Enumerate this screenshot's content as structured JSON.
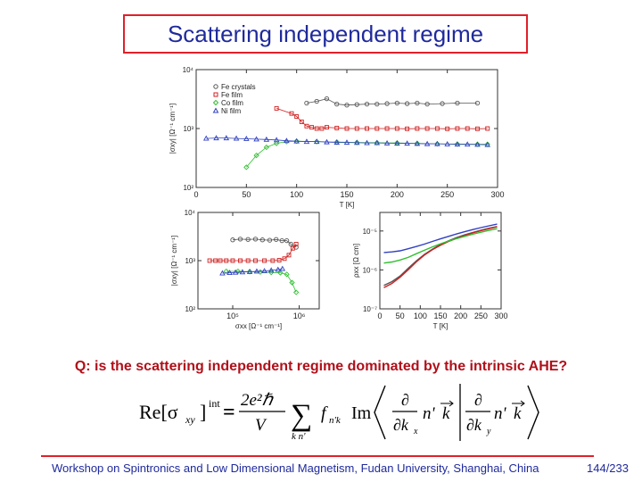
{
  "slide": {
    "title": "Scattering independent regime",
    "question": "Q: is the scattering independent regime dominated by the intrinsic AHE?",
    "footer": "Workshop on Spintronics and Low Dimensional Magnetism, Fudan University, Shanghai, China",
    "page": "144/233"
  },
  "equation": {
    "lhs": "Re[σ",
    "lhs_sub": "xy",
    "lhs_close": "]",
    "lhs_sup": "int",
    "equals": "=",
    "frac_num": "2e²ℏ",
    "frac_den": "V",
    "sum_sub": "k n'",
    "f_term": "f",
    "f_sub": "n'k",
    "im": "Im",
    "d1_num": "∂",
    "d1_den": "∂k",
    "d1_den_sub": "x",
    "d2_num": "∂",
    "d2_den": "∂k",
    "d2_den_sub": "y",
    "ket1": "n'",
    "ket1_k": "k",
    "ket2": "n'",
    "ket2_k": "k"
  },
  "colors": {
    "accent": "#e0202a",
    "title_text": "#1f2a9c",
    "question_text": "#b0101a"
  },
  "chart_data": [
    {
      "type": "scatter",
      "panel": "top",
      "xlabel": "T [K]",
      "ylabel": "|σxy| [Ω⁻¹ cm⁻¹]",
      "x_ticks": [
        "0",
        "50",
        "100",
        "150",
        "200",
        "250",
        "300"
      ],
      "y_ticks": [
        "10²",
        "10³",
        "10⁴"
      ],
      "xlim": [
        0,
        300
      ],
      "ylim": [
        100,
        10000
      ],
      "y_scale": "log",
      "legend_position": "top-left",
      "series": [
        {
          "name": "Fe crystals",
          "color": "#555555",
          "x": [
            110,
            120,
            130,
            140,
            150,
            160,
            170,
            180,
            190,
            200,
            210,
            220,
            230,
            245,
            260,
            280
          ],
          "y": [
            2700,
            2900,
            3200,
            2600,
            2500,
            2550,
            2600,
            2600,
            2650,
            2700,
            2650,
            2700,
            2600,
            2650,
            2700,
            2700
          ]
        },
        {
          "name": "Fe film",
          "color": "#d02020",
          "x": [
            80,
            95,
            100,
            105,
            110,
            115,
            120,
            125,
            130,
            140,
            150,
            160,
            170,
            180,
            190,
            200,
            210,
            220,
            230,
            240,
            250,
            260,
            270,
            280,
            290
          ],
          "y": [
            2200,
            1800,
            1600,
            1300,
            1100,
            1050,
            1000,
            1000,
            1050,
            1020,
            1000,
            1000,
            1000,
            1000,
            1000,
            1000,
            990,
            1000,
            1000,
            1000,
            990,
            1000,
            1000,
            990,
            1000
          ]
        },
        {
          "name": "Co film",
          "color": "#30c030",
          "x": [
            50,
            60,
            70,
            80,
            90,
            100,
            120,
            140,
            160,
            180,
            200,
            220,
            240,
            260,
            280,
            290
          ],
          "y": [
            220,
            350,
            480,
            560,
            600,
            610,
            600,
            590,
            580,
            575,
            570,
            560,
            550,
            545,
            540,
            540
          ]
        },
        {
          "name": "Ni film",
          "color": "#3040c0",
          "x": [
            10,
            20,
            30,
            40,
            50,
            60,
            70,
            80,
            90,
            100,
            110,
            120,
            130,
            140,
            150,
            160,
            170,
            180,
            190,
            200,
            210,
            220,
            230,
            240,
            250,
            260,
            270,
            280,
            290
          ],
          "y": [
            680,
            690,
            690,
            680,
            670,
            660,
            650,
            640,
            620,
            610,
            600,
            600,
            590,
            580,
            580,
            575,
            570,
            570,
            565,
            560,
            560,
            555,
            550,
            550,
            545,
            540,
            540,
            535,
            530
          ]
        }
      ]
    },
    {
      "type": "scatter",
      "panel": "bottom-left",
      "xlabel": "σxx [Ω⁻¹ cm⁻¹]",
      "ylabel": "|σxy| [Ω⁻¹ cm⁻¹]",
      "x_ticks": [
        "10⁵",
        "10⁶"
      ],
      "y_ticks": [
        "10²",
        "10³",
        "10⁴"
      ],
      "xlim": [
        30000,
        2000000
      ],
      "ylim": [
        100,
        10000
      ],
      "x_scale": "log",
      "y_scale": "log",
      "series": [
        {
          "name": "Fe crystals",
          "color": "#555555",
          "x": [
            100000,
            130000,
            170000,
            220000,
            280000,
            360000,
            450000,
            550000,
            650000,
            750000,
            900000
          ],
          "y": [
            2700,
            2800,
            2750,
            2800,
            2700,
            2650,
            2750,
            2600,
            2600,
            2200,
            1900
          ]
        },
        {
          "name": "Fe film",
          "color": "#d02020",
          "x": [
            45000,
            55000,
            65000,
            80000,
            100000,
            130000,
            170000,
            220000,
            300000,
            400000,
            500000,
            600000,
            700000,
            800000,
            900000
          ],
          "y": [
            1000,
            1000,
            1000,
            1000,
            1000,
            1000,
            1000,
            1000,
            1000,
            1000,
            1020,
            1100,
            1300,
            1800,
            2200
          ]
        },
        {
          "name": "Co film",
          "color": "#30c030",
          "x": [
            80000,
            120000,
            180000,
            260000,
            380000,
            520000,
            650000,
            780000,
            900000
          ],
          "y": [
            600,
            600,
            590,
            580,
            570,
            560,
            520,
            350,
            220
          ]
        },
        {
          "name": "Ni film",
          "color": "#3040c0",
          "x": [
            70000,
            90000,
            110000,
            140000,
            180000,
            230000,
            300000,
            380000,
            480000,
            560000
          ],
          "y": [
            550,
            560,
            570,
            580,
            590,
            600,
            610,
            630,
            650,
            680
          ]
        }
      ]
    },
    {
      "type": "line",
      "panel": "bottom-right",
      "xlabel": "T [K]",
      "ylabel": "ρxx [Ω cm]",
      "x_ticks": [
        "0",
        "50",
        "100",
        "150",
        "200",
        "250",
        "300"
      ],
      "y_ticks": [
        "10⁻⁷",
        "10⁻⁶",
        "10⁻⁵"
      ],
      "xlim": [
        0,
        300
      ],
      "ylim": [
        1e-07,
        3e-05
      ],
      "y_scale": "log",
      "series": [
        {
          "name": "Fe crystals",
          "color": "#555555",
          "x": [
            10,
            30,
            50,
            70,
            90,
            110,
            130,
            150,
            170,
            190,
            210,
            230,
            250,
            270,
            290
          ],
          "y": [
            4e-07,
            5e-07,
            7e-07,
            1.1e-06,
            1.7e-06,
            2.5e-06,
            3.4e-06,
            4.5e-06,
            5.6e-06,
            6.8e-06,
            8e-06,
            9.2e-06,
            1.05e-05,
            1.18e-05,
            1.3e-05
          ]
        },
        {
          "name": "Fe film",
          "color": "#d02020",
          "x": [
            10,
            30,
            50,
            70,
            90,
            110,
            130,
            150,
            170,
            190,
            210,
            230,
            250,
            270,
            290
          ],
          "y": [
            3.5e-07,
            4.5e-07,
            6.5e-07,
            1e-06,
            1.6e-06,
            2.4e-06,
            3.3e-06,
            4.3e-06,
            5.4e-06,
            6.5e-06,
            7.7e-06,
            9e-06,
            1.02e-05,
            1.15e-05,
            1.28e-05
          ]
        },
        {
          "name": "Co film",
          "color": "#30c030",
          "x": [
            10,
            30,
            50,
            70,
            90,
            110,
            130,
            150,
            170,
            190,
            210,
            230,
            250,
            270,
            290
          ],
          "y": [
            1.5e-06,
            1.6e-06,
            1.8e-06,
            2.1e-06,
            2.6e-06,
            3.2e-06,
            3.9e-06,
            4.7e-06,
            5.5e-06,
            6.4e-06,
            7.3e-06,
            8.3e-06,
            9.3e-06,
            1.04e-05,
            1.15e-05
          ]
        },
        {
          "name": "Ni film",
          "color": "#3040c0",
          "x": [
            10,
            30,
            50,
            70,
            90,
            110,
            130,
            150,
            170,
            190,
            210,
            230,
            250,
            270,
            290
          ],
          "y": [
            2.8e-06,
            2.9e-06,
            3.1e-06,
            3.5e-06,
            4e-06,
            4.6e-06,
            5.4e-06,
            6.3e-06,
            7.3e-06,
            8.4e-06,
            9.6e-06,
            1.09e-05,
            1.22e-05,
            1.36e-05,
            1.5e-05
          ]
        }
      ]
    }
  ]
}
